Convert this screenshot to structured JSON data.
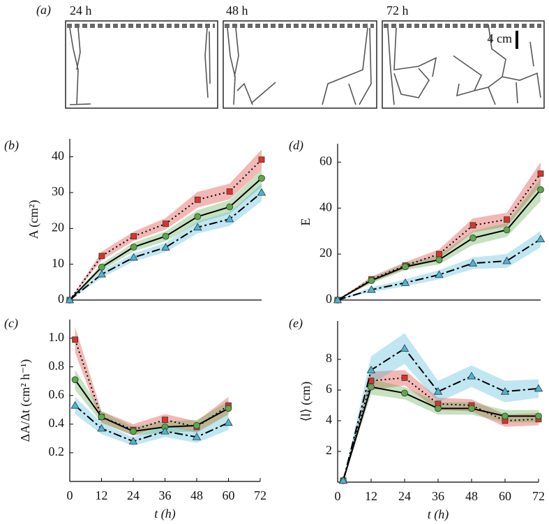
{
  "panel_a": {
    "label": "(a)",
    "frames": [
      "24 h",
      "48 h",
      "72 h"
    ],
    "scale_bar": "4 cm"
  },
  "chart_data": [
    {
      "type": "line",
      "panel_label": "(b)",
      "ylabel": "A (cm²)",
      "x": [
        0,
        12,
        24,
        36,
        48,
        60,
        72
      ],
      "xlim": [
        0,
        72
      ],
      "ylim": [
        0,
        45
      ],
      "yticks": [
        0,
        10,
        20,
        30,
        40
      ],
      "series": [
        {
          "color": "#d9342b",
          "marker": "square",
          "linestyle": "dotted",
          "values": [
            0,
            12.3,
            17.8,
            21.3,
            28,
            30.3,
            39.2
          ],
          "errors": [
            0,
            1.2,
            1.3,
            1.6,
            2.2,
            2.2,
            2.8
          ]
        },
        {
          "color": "#5aaa4a",
          "marker": "circle",
          "linestyle": "solid",
          "values": [
            0,
            9.2,
            14.8,
            17.8,
            23.3,
            26,
            34
          ],
          "errors": [
            0,
            1,
            1.2,
            1.4,
            1.8,
            1.9,
            2.4
          ]
        },
        {
          "color": "#4bb6d6",
          "marker": "triangle",
          "linestyle": "dashdot",
          "values": [
            0,
            7.2,
            11.9,
            14.7,
            20.3,
            22.6,
            30
          ],
          "errors": [
            0,
            1,
            1.1,
            1.3,
            1.7,
            1.9,
            2.4
          ]
        }
      ]
    },
    {
      "type": "line",
      "panel_label": "(d)",
      "ylabel": "E",
      "x": [
        0,
        12,
        24,
        36,
        48,
        60,
        72
      ],
      "xlim": [
        0,
        72
      ],
      "ylim": [
        0,
        68
      ],
      "yticks": [
        0,
        20,
        40,
        60
      ],
      "series": [
        {
          "color": "#d9342b",
          "marker": "square",
          "linestyle": "dotted",
          "values": [
            0,
            9,
            15,
            20,
            32.5,
            35,
            55
          ],
          "errors": [
            0,
            1.2,
            1.5,
            2,
            3,
            3,
            5
          ]
        },
        {
          "color": "#5aaa4a",
          "marker": "circle",
          "linestyle": "solid",
          "values": [
            0,
            8.5,
            14.5,
            17.5,
            27,
            30.5,
            48
          ],
          "errors": [
            0,
            1.2,
            1.5,
            2,
            3,
            3,
            5
          ]
        },
        {
          "color": "#4bb6d6",
          "marker": "triangle",
          "linestyle": "dashdot",
          "values": [
            0,
            4.5,
            7.5,
            11,
            16,
            17,
            26.5
          ],
          "errors": [
            0,
            1,
            1.5,
            2,
            2.5,
            3,
            3.5
          ]
        }
      ]
    },
    {
      "type": "line",
      "panel_label": "(c)",
      "ylabel": "ΔA/Δt (cm² h⁻¹)",
      "xlabel": "t (h)",
      "x": [
        2,
        12,
        24,
        36,
        48,
        60
      ],
      "xlim": [
        0,
        72
      ],
      "ylim": [
        0,
        1.13
      ],
      "xticks": [
        0,
        12,
        24,
        36,
        48,
        60,
        72
      ],
      "yticks": [
        0.2,
        0.4,
        0.6,
        0.8,
        {
          "value": 1,
          "label": "1.0"
        }
      ],
      "series": [
        {
          "color": "#d9342b",
          "marker": "square",
          "linestyle": "dotted",
          "values": [
            0.99,
            0.45,
            0.36,
            0.43,
            0.38,
            0.53
          ],
          "errors": [
            0.09,
            0.04,
            0.04,
            0.04,
            0.04,
            0.06
          ]
        },
        {
          "color": "#5aaa4a",
          "marker": "circle",
          "linestyle": "solid",
          "values": [
            0.71,
            0.45,
            0.35,
            0.38,
            0.39,
            0.51
          ],
          "errors": [
            0.07,
            0.04,
            0.03,
            0.04,
            0.04,
            0.05
          ]
        },
        {
          "color": "#4bb6d6",
          "marker": "triangle",
          "linestyle": "dashdot",
          "values": [
            0.53,
            0.37,
            0.28,
            0.35,
            0.31,
            0.41
          ],
          "errors": [
            0.06,
            0.04,
            0.03,
            0.04,
            0.04,
            0.05
          ]
        }
      ]
    },
    {
      "type": "line",
      "panel_label": "(e)",
      "ylabel": "⟨l⟩ (cm)",
      "xlabel": "t (h)",
      "x": [
        2,
        12,
        24,
        36,
        48,
        60,
        72
      ],
      "xlim": [
        0,
        72
      ],
      "ylim": [
        0,
        10.5
      ],
      "xticks": [
        0,
        12,
        24,
        36,
        48,
        60,
        72
      ],
      "yticks": [
        2,
        4,
        6,
        8
      ],
      "series": [
        {
          "color": "#d9342b",
          "marker": "square",
          "linestyle": "dotted",
          "values": [
            0.1,
            6.6,
            6.8,
            5.1,
            5,
            4,
            4.1
          ],
          "errors": [
            0,
            0.6,
            0.5,
            0.4,
            0.4,
            0.4,
            0.4
          ]
        },
        {
          "color": "#5aaa4a",
          "marker": "circle",
          "linestyle": "solid",
          "values": [
            0.1,
            6.2,
            5.8,
            4.8,
            4.8,
            4.3,
            4.3
          ],
          "errors": [
            0,
            0.5,
            0.4,
            0.4,
            0.4,
            0.4,
            0.4
          ]
        },
        {
          "color": "#4bb6d6",
          "marker": "triangle",
          "linestyle": "dashdot",
          "values": [
            0.1,
            7.3,
            8.7,
            5.9,
            6.9,
            5.9,
            6.1
          ],
          "errors": [
            0,
            0.9,
            1,
            0.7,
            0.7,
            0.7,
            0.6
          ]
        }
      ]
    }
  ]
}
